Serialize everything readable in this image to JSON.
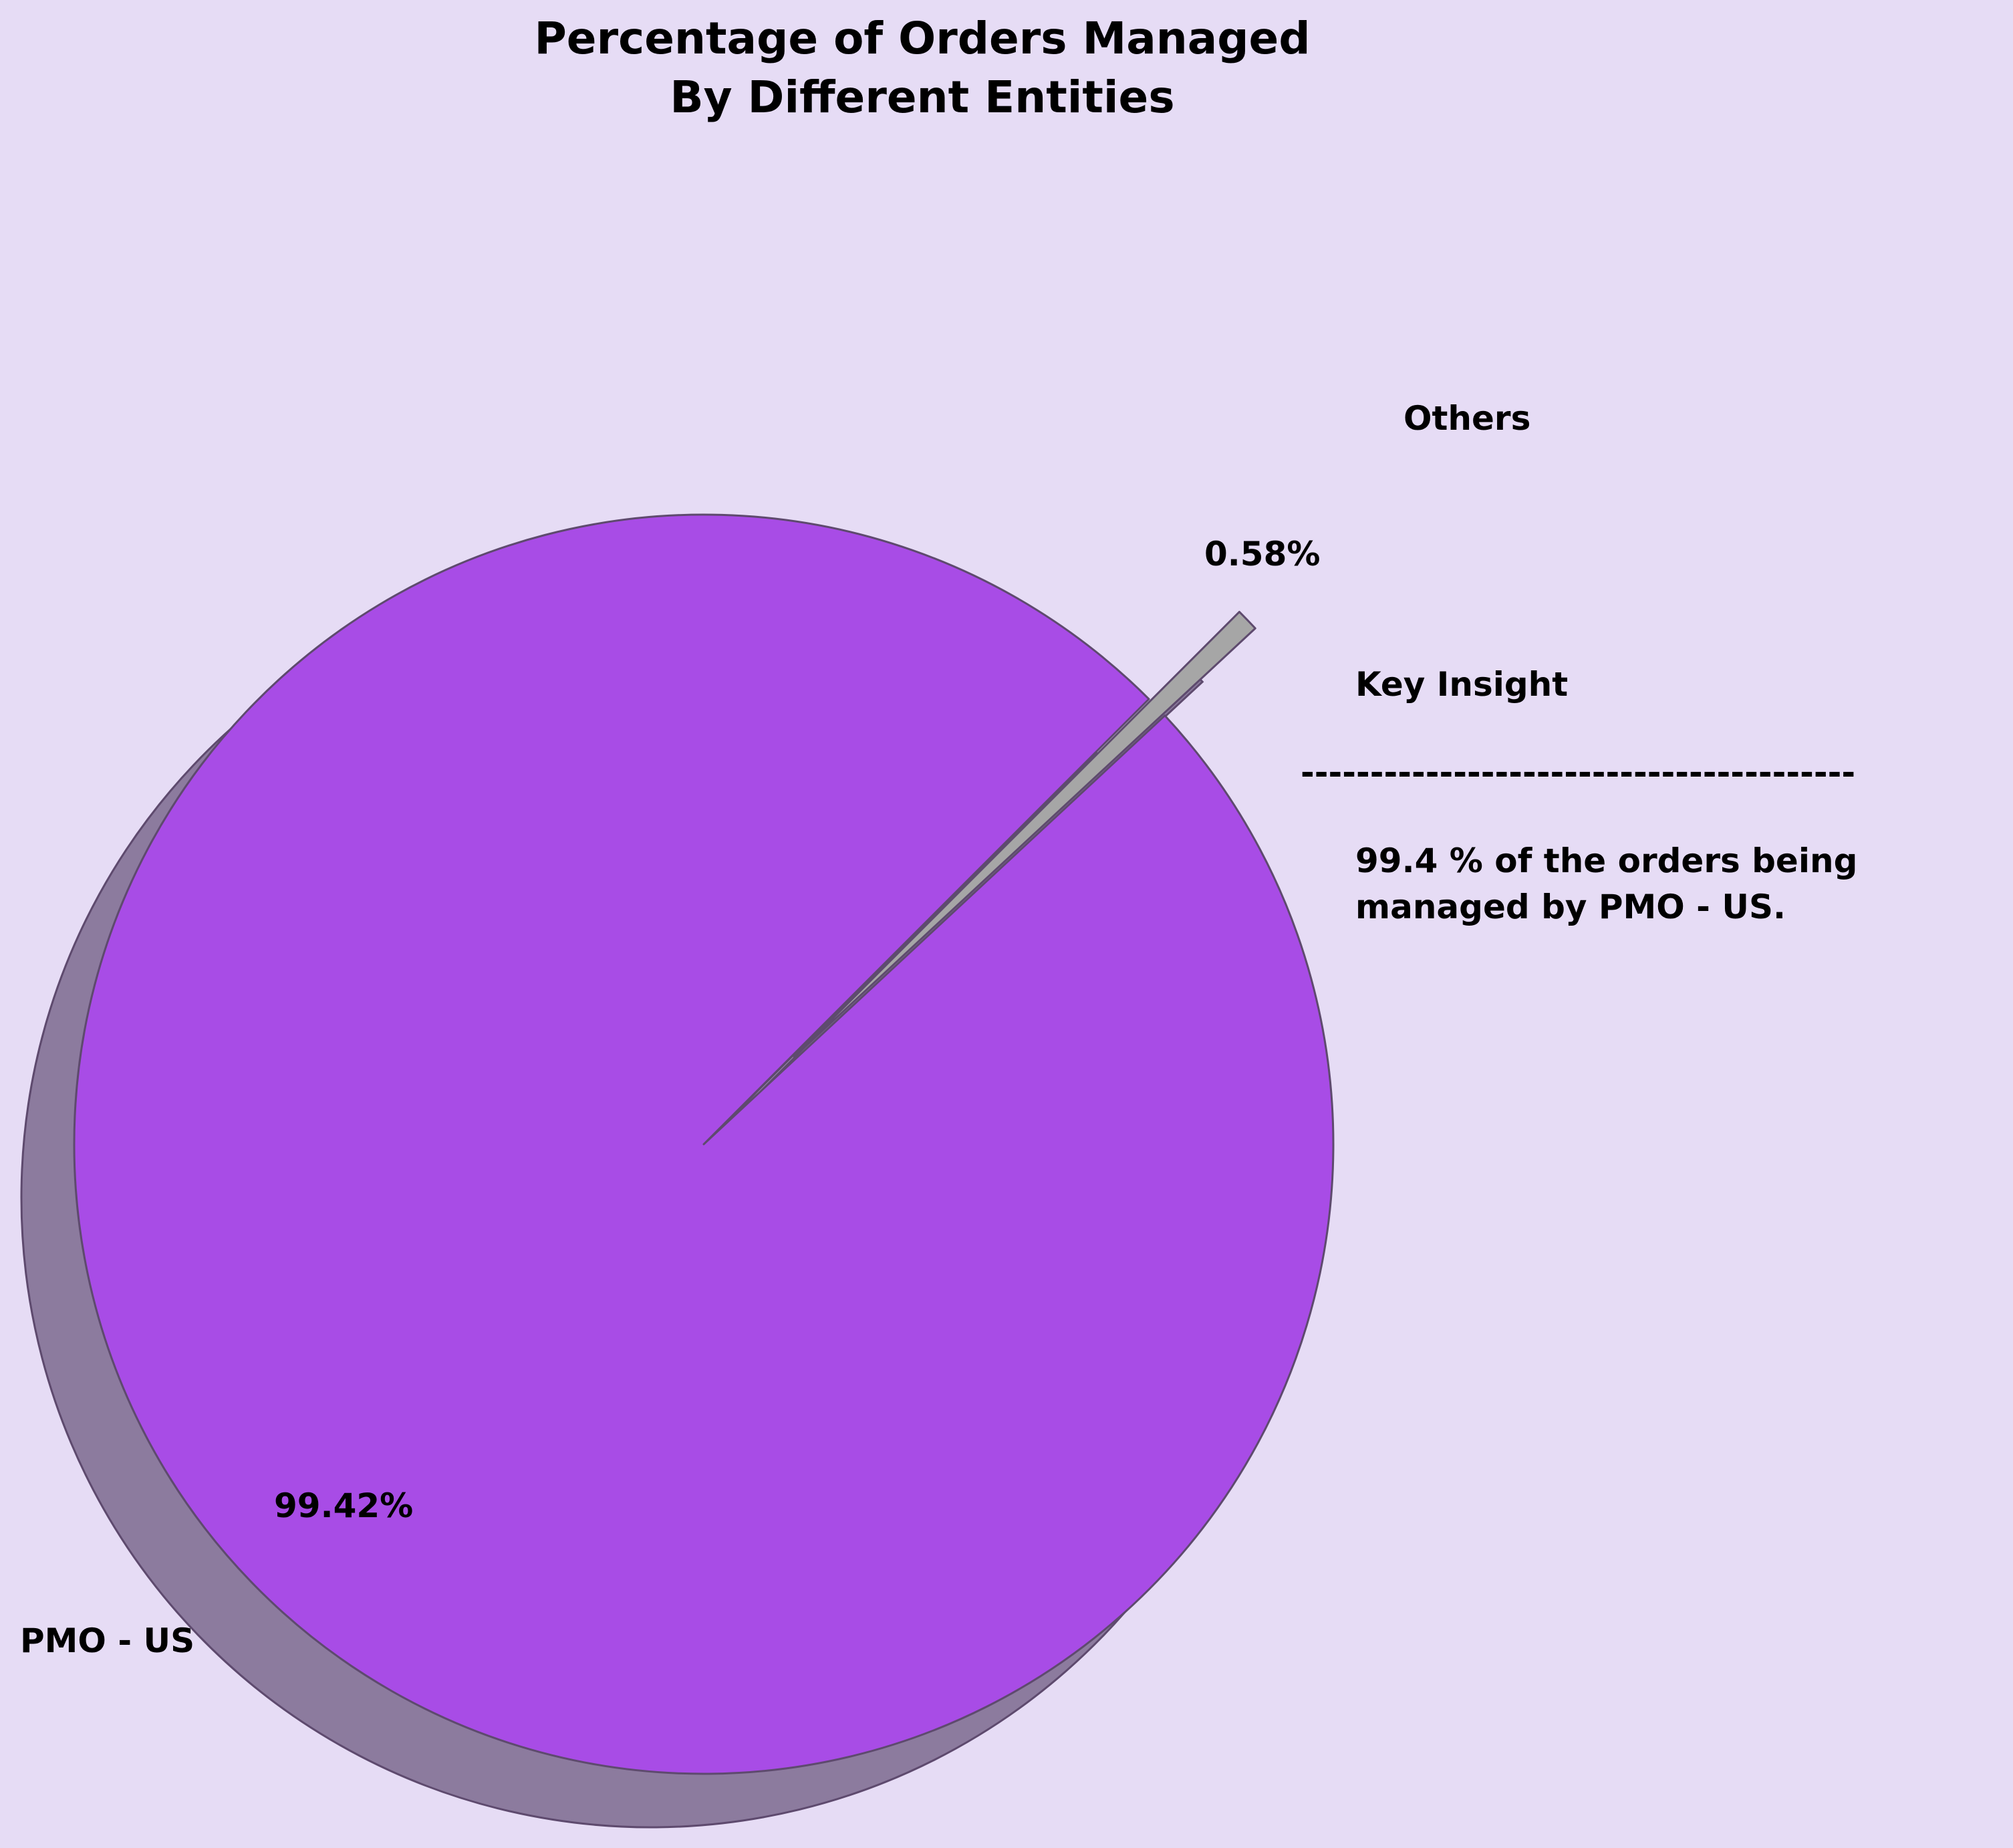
{
  "chart_data": {
    "type": "pie",
    "title_lines": [
      "Percentage of Orders Managed",
      "By Different Entities"
    ],
    "slices": [
      {
        "label": "PMO - US",
        "value": 99.42,
        "pct_label": "99.42%",
        "color": "#a84ce6",
        "shadow_color": "#8c7b9e"
      },
      {
        "label": "Others",
        "value": 0.58,
        "pct_label": "0.58%",
        "color": "#a6a6a6",
        "shadow_color": "#8c7b9e"
      }
    ],
    "exploded": "Others",
    "shadow": true,
    "annotation": {
      "heading": "Key Insight",
      "divider": "----------------------------------------",
      "lines": [
        "99.4 % of the orders being",
        "managed by PMO - US."
      ]
    }
  },
  "colors": {
    "background": "#e6dcf5",
    "text": "#000000",
    "edge": "#5e4a6e"
  }
}
